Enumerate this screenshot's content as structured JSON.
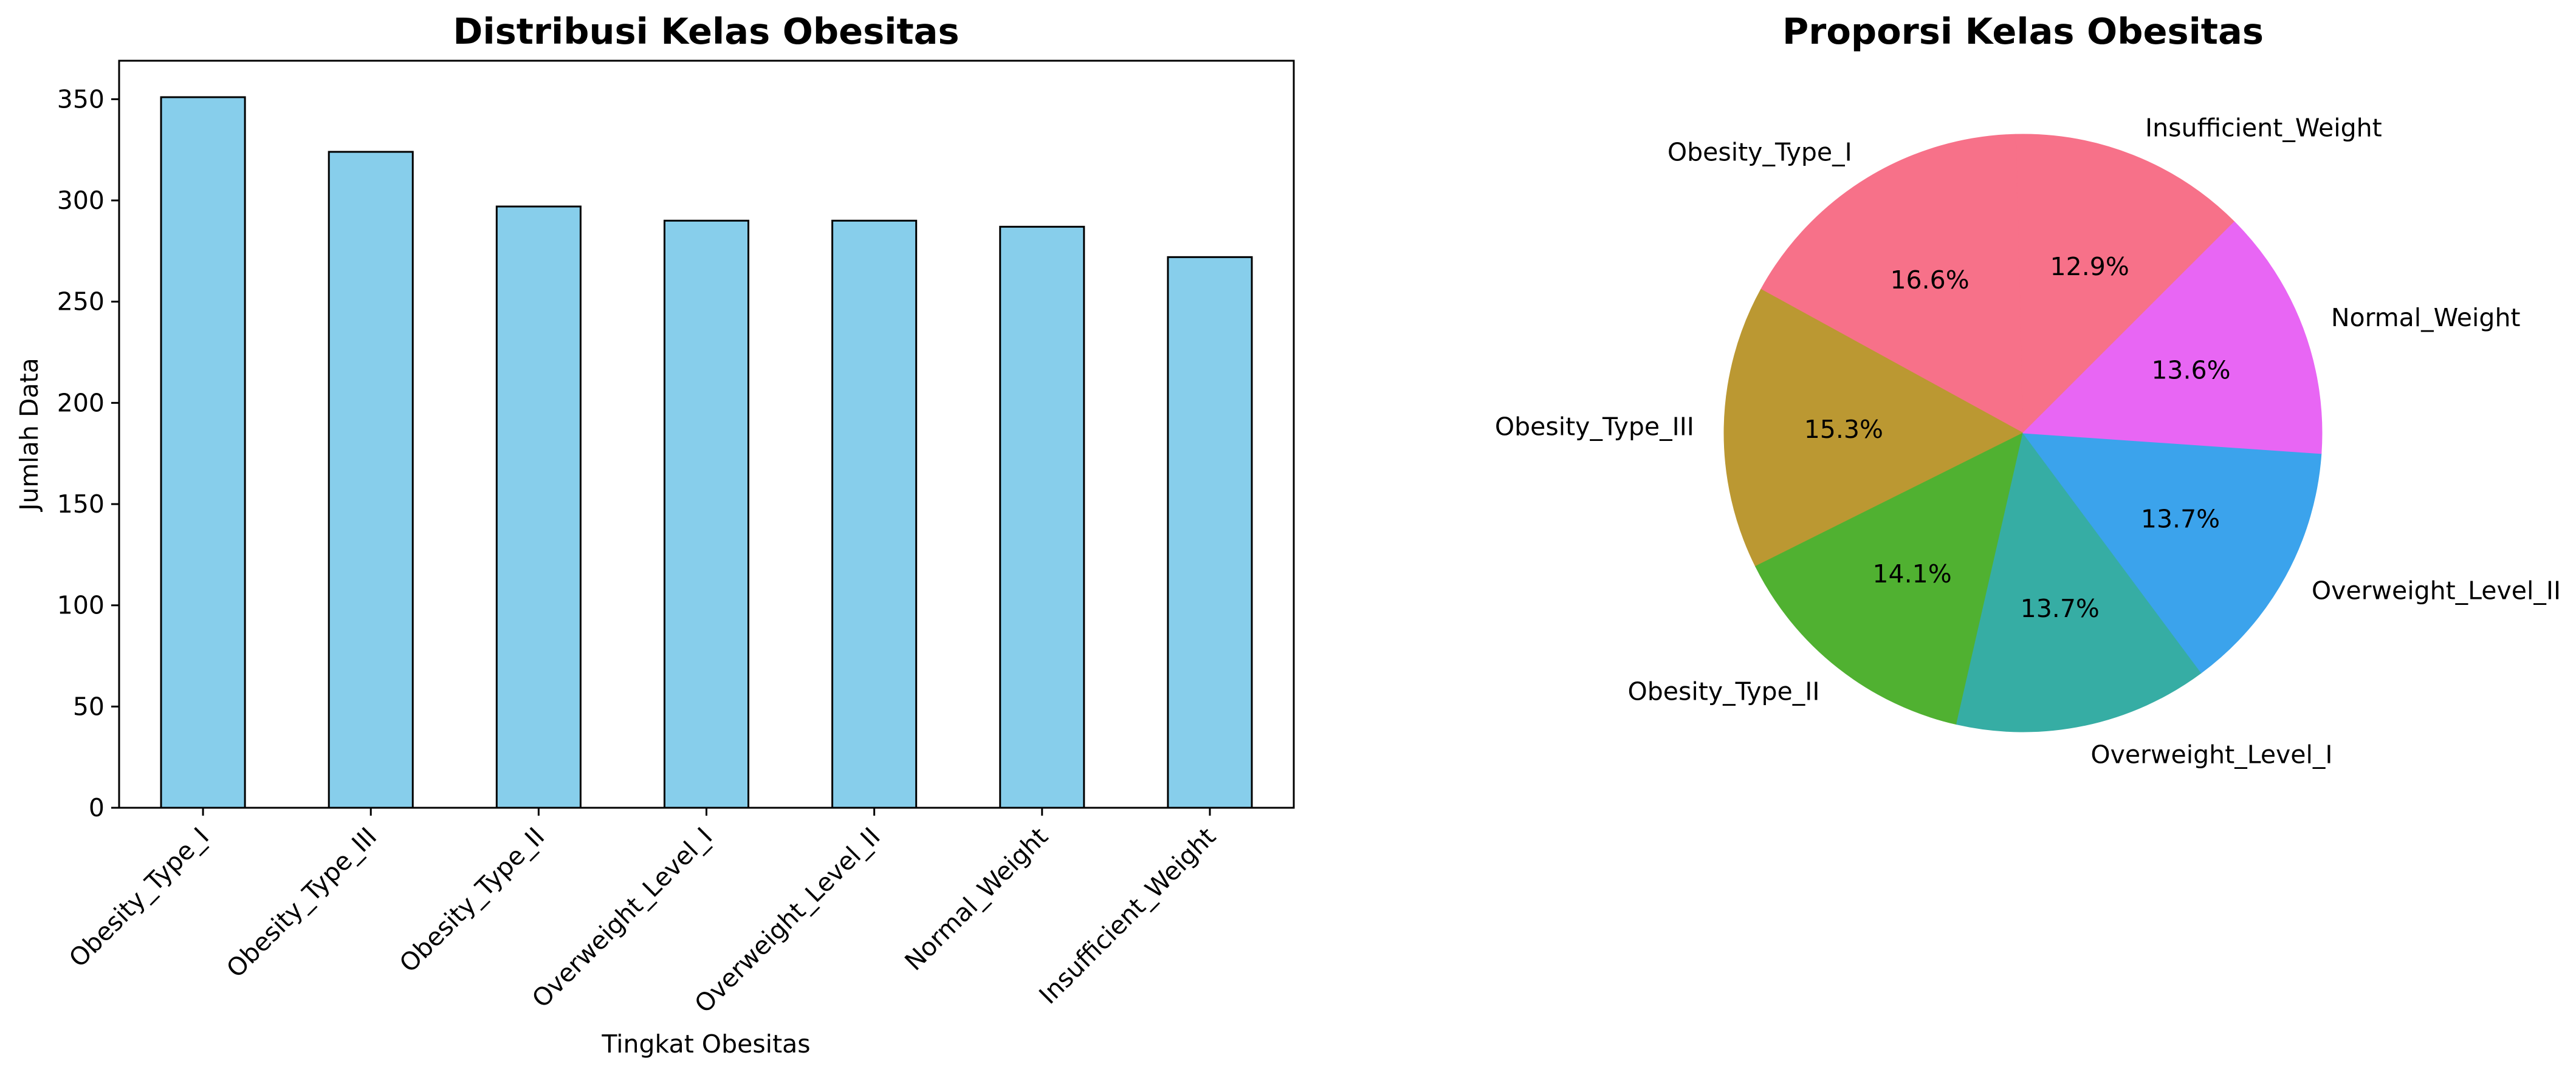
{
  "chart_data": [
    {
      "type": "bar",
      "title": "Distribusi Kelas Obesitas",
      "xlabel": "Tingkat Obesitas",
      "ylabel": "Jumlah Data",
      "categories": [
        "Obesity_Type_I",
        "Obesity_Type_III",
        "Obesity_Type_II",
        "Overweight_Level_I",
        "Overweight_Level_II",
        "Normal_Weight",
        "Insufficient_Weight"
      ],
      "values": [
        351,
        324,
        297,
        290,
        290,
        287,
        272
      ],
      "ylim": [
        0,
        369
      ],
      "yticks": [
        0,
        50,
        100,
        150,
        200,
        250,
        300,
        350
      ],
      "bar_color": "#87ceeb",
      "edge_color": "#000000",
      "grid": false
    },
    {
      "type": "pie",
      "title": "Proporsi Kelas Obesitas",
      "labels": [
        "Insufficient_Weight",
        "Obesity_Type_I",
        "Obesity_Type_III",
        "Obesity_Type_II",
        "Overweight_Level_I",
        "Overweight_Level_II",
        "Normal_Weight"
      ],
      "values": [
        272,
        351,
        324,
        297,
        290,
        290,
        287
      ],
      "percent_labels": [
        "12.9%",
        "16.6%",
        "15.3%",
        "14.1%",
        "13.7%",
        "13.7%",
        "13.6%"
      ],
      "colors": [
        "#f77189",
        "#f77189",
        "#bb9832",
        "#50b131",
        "#36ada4",
        "#3ba3ec",
        "#e866f4"
      ],
      "startangle": 45,
      "direction": "counterclockwise"
    }
  ]
}
